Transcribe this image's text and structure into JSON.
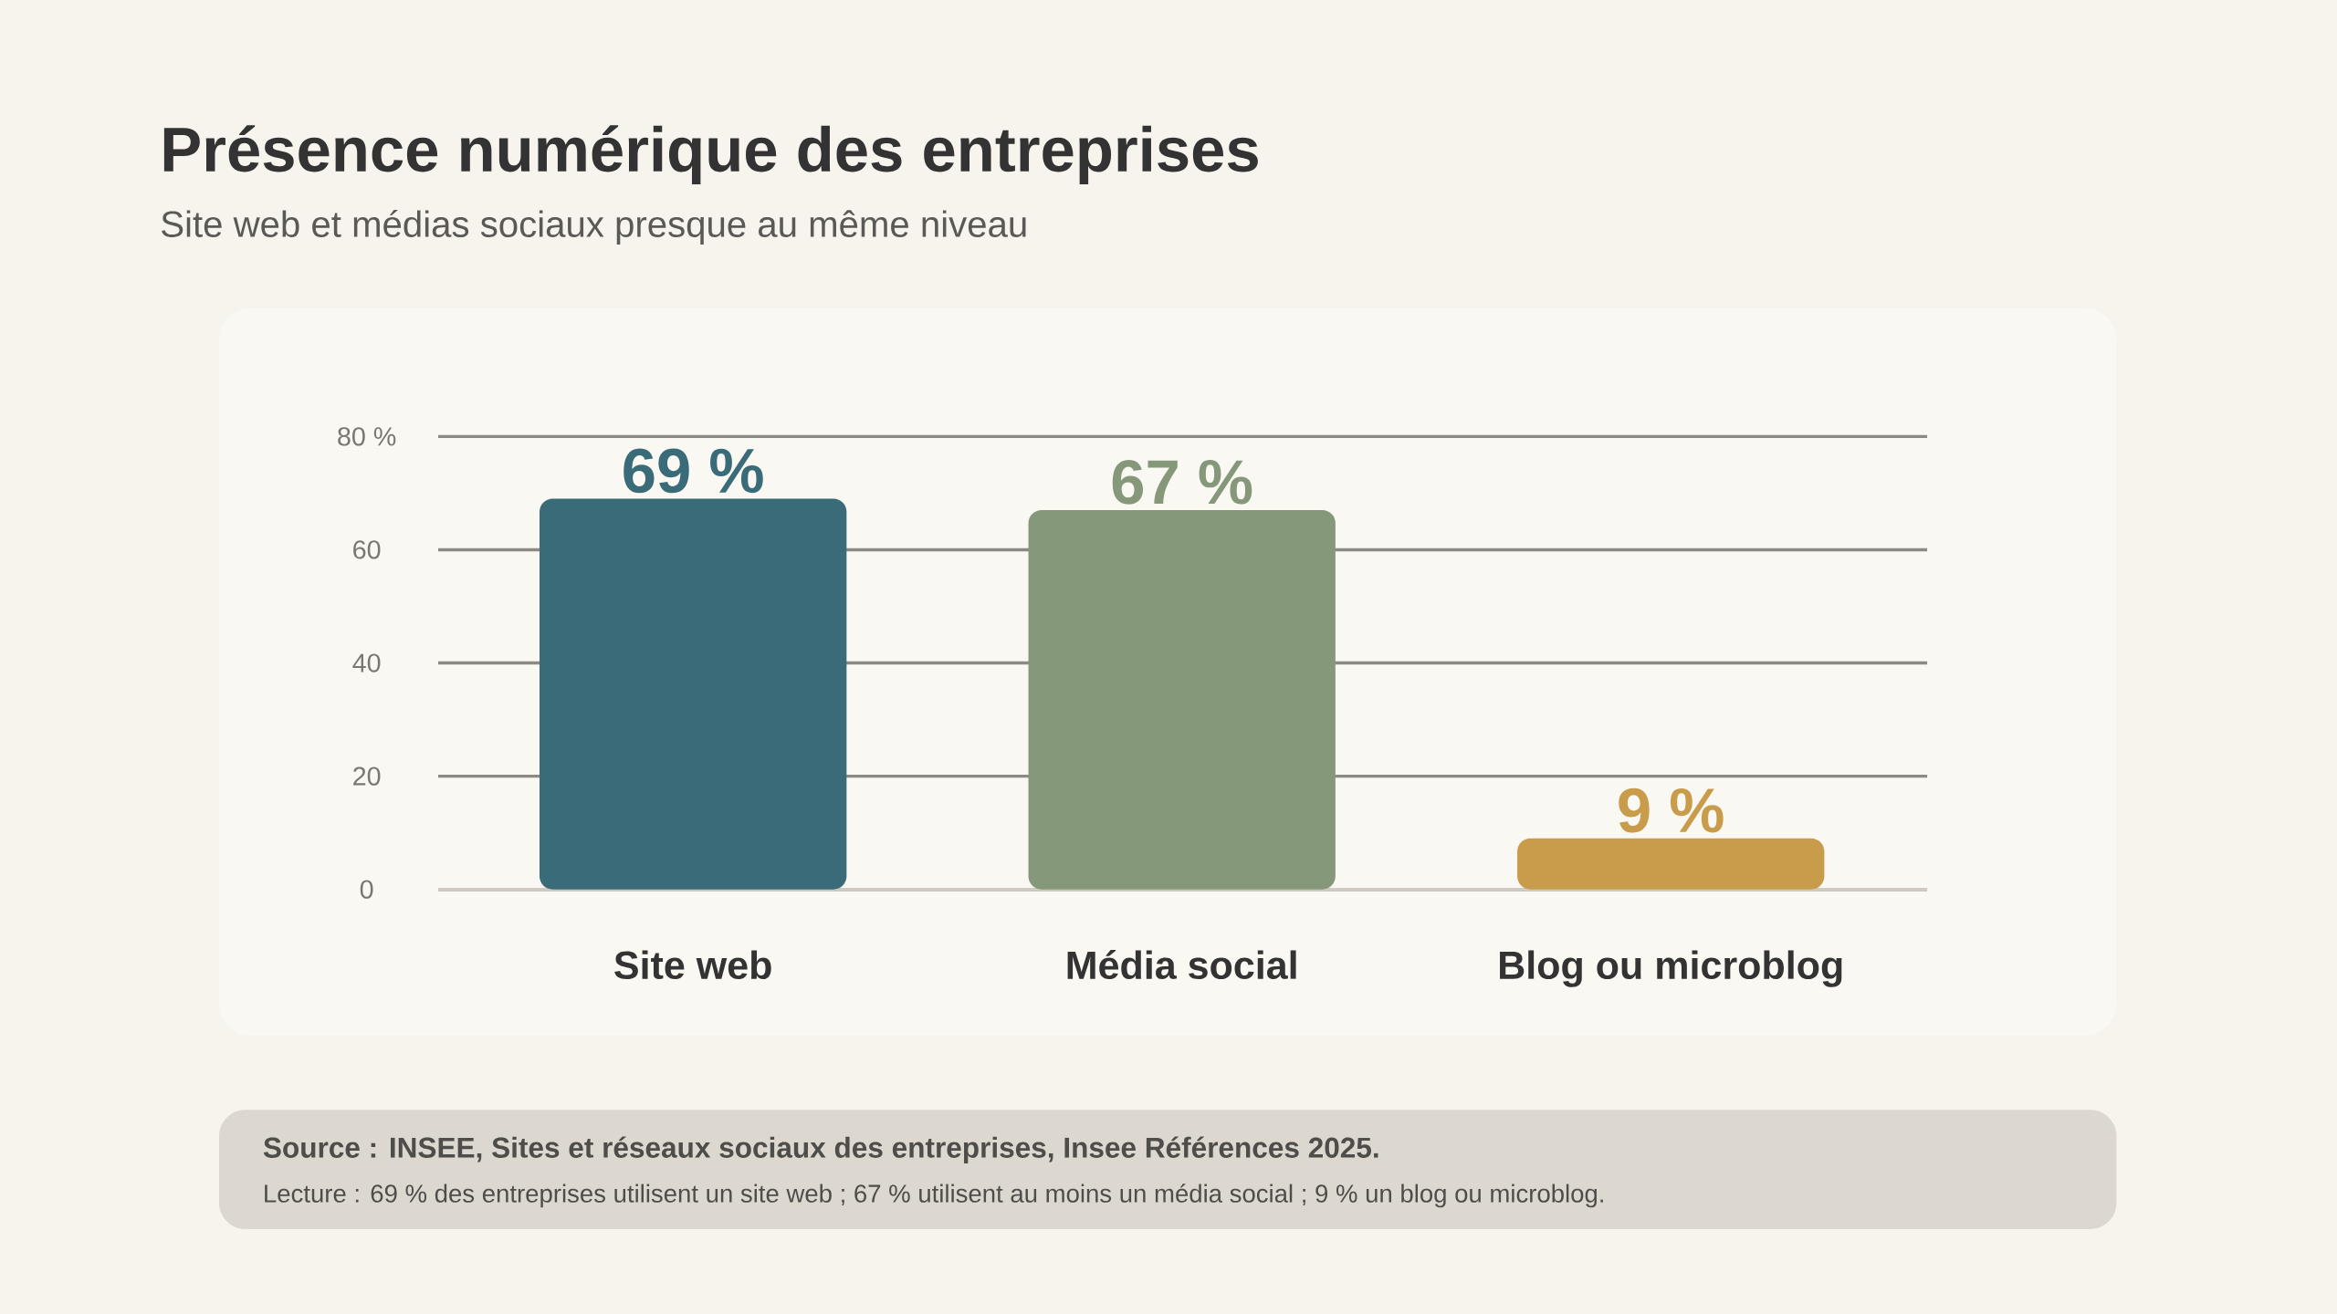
{
  "chart_data": {
    "type": "bar",
    "title": "Présence numérique des entreprises",
    "subtitle": "Site web et médias sociaux presque au même niveau",
    "categories": [
      "Site web",
      "Média social",
      "Blog ou microblog"
    ],
    "values": [
      69,
      67,
      9
    ],
    "colors": [
      "#3a6b78",
      "#86987a",
      "#c99c4c"
    ],
    "value_labels": [
      "69 %",
      "67 %",
      "9 %"
    ],
    "ylim": [
      0,
      80
    ],
    "yticks": [
      0,
      20,
      40,
      60,
      {
        "value": 80,
        "label": "80 %"
      }
    ],
    "grid": "y",
    "annotations": [
      "Source : INSEE, Sites et réseaux sociaux des entreprises, Insee Références 2025.",
      "Lecture : 69 % des entreprises utilisent un site web ; 67 % utilisent au moins un média social ; 9 % un blog ou microblog."
    ]
  }
}
